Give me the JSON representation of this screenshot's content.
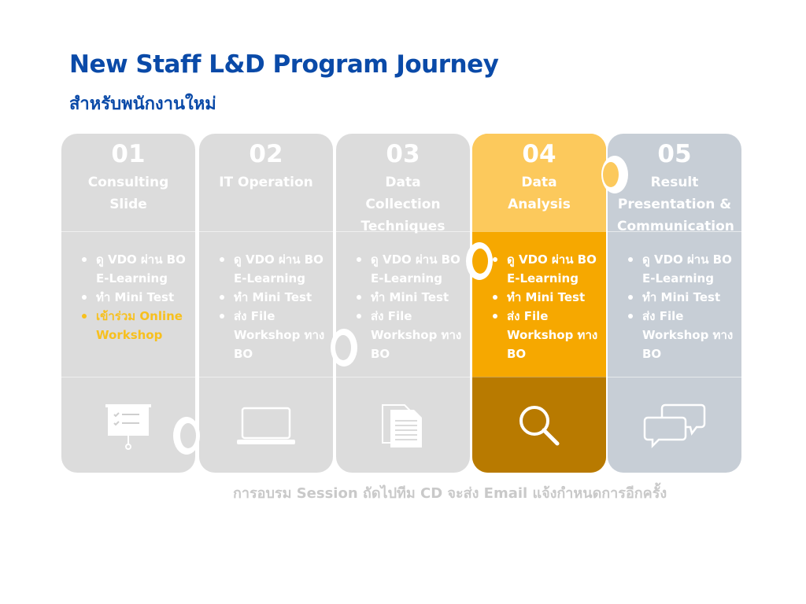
{
  "header": {
    "title": "New Staff L&D Program Journey",
    "subtitle": "สำหรับพนักงานใหม่"
  },
  "steps": [
    {
      "number": "01",
      "title_lines": [
        "Consulting",
        "Slide"
      ],
      "tasks": [
        "ดู VDO ผ่าน BO E-Learning",
        "ทำ Mini Test",
        "เข้าร่วม Online Workshop"
      ],
      "accent_task_index": 2,
      "icon": "presentation-board-icon",
      "active": false
    },
    {
      "number": "02",
      "title_lines": [
        "IT Operation"
      ],
      "tasks": [
        "ดู VDO ผ่าน BO E-Learning",
        "ทำ Mini Test",
        "ส่ง File Workshop ทาง BO"
      ],
      "icon": "laptop-icon",
      "active": false
    },
    {
      "number": "03",
      "title_lines": [
        "Data Collection",
        "Techniques"
      ],
      "tasks": [
        "ดู VDO ผ่าน BO E-Learning",
        "ทำ Mini Test",
        "ส่ง File Workshop ทาง BO"
      ],
      "icon": "documents-icon",
      "active": false
    },
    {
      "number": "04",
      "title_lines": [
        "Data",
        "Analysis"
      ],
      "tasks": [
        "ดู VDO ผ่าน BO E-Learning",
        "ทำ Mini Test",
        "ส่ง File Workshop ทาง BO"
      ],
      "icon": "magnifier-icon",
      "active": true
    },
    {
      "number": "05",
      "title_lines": [
        "Result",
        "Presentation &",
        "Communication"
      ],
      "tasks": [
        "ดู VDO ผ่าน BO E-Learning",
        "ทำ Mini Test",
        "ส่ง File Workshop ทาง BO"
      ],
      "icon": "chat-bubbles-icon",
      "active": false
    }
  ],
  "footnote": "การอบรม Session ถัดไปทีม CD จะส่ง Email แจ้งกำหนดการอีกครั้ง",
  "colors": {
    "title": "#0a4aa8",
    "card_gray": "#dcdcdc",
    "card_blue_gray": "#c7ced6",
    "active_head": "#fcc95c",
    "active_body": "#f6a800",
    "active_foot": "#b87a00",
    "accent_text": "#f7c01e",
    "footnote": "#c9c9c9"
  }
}
